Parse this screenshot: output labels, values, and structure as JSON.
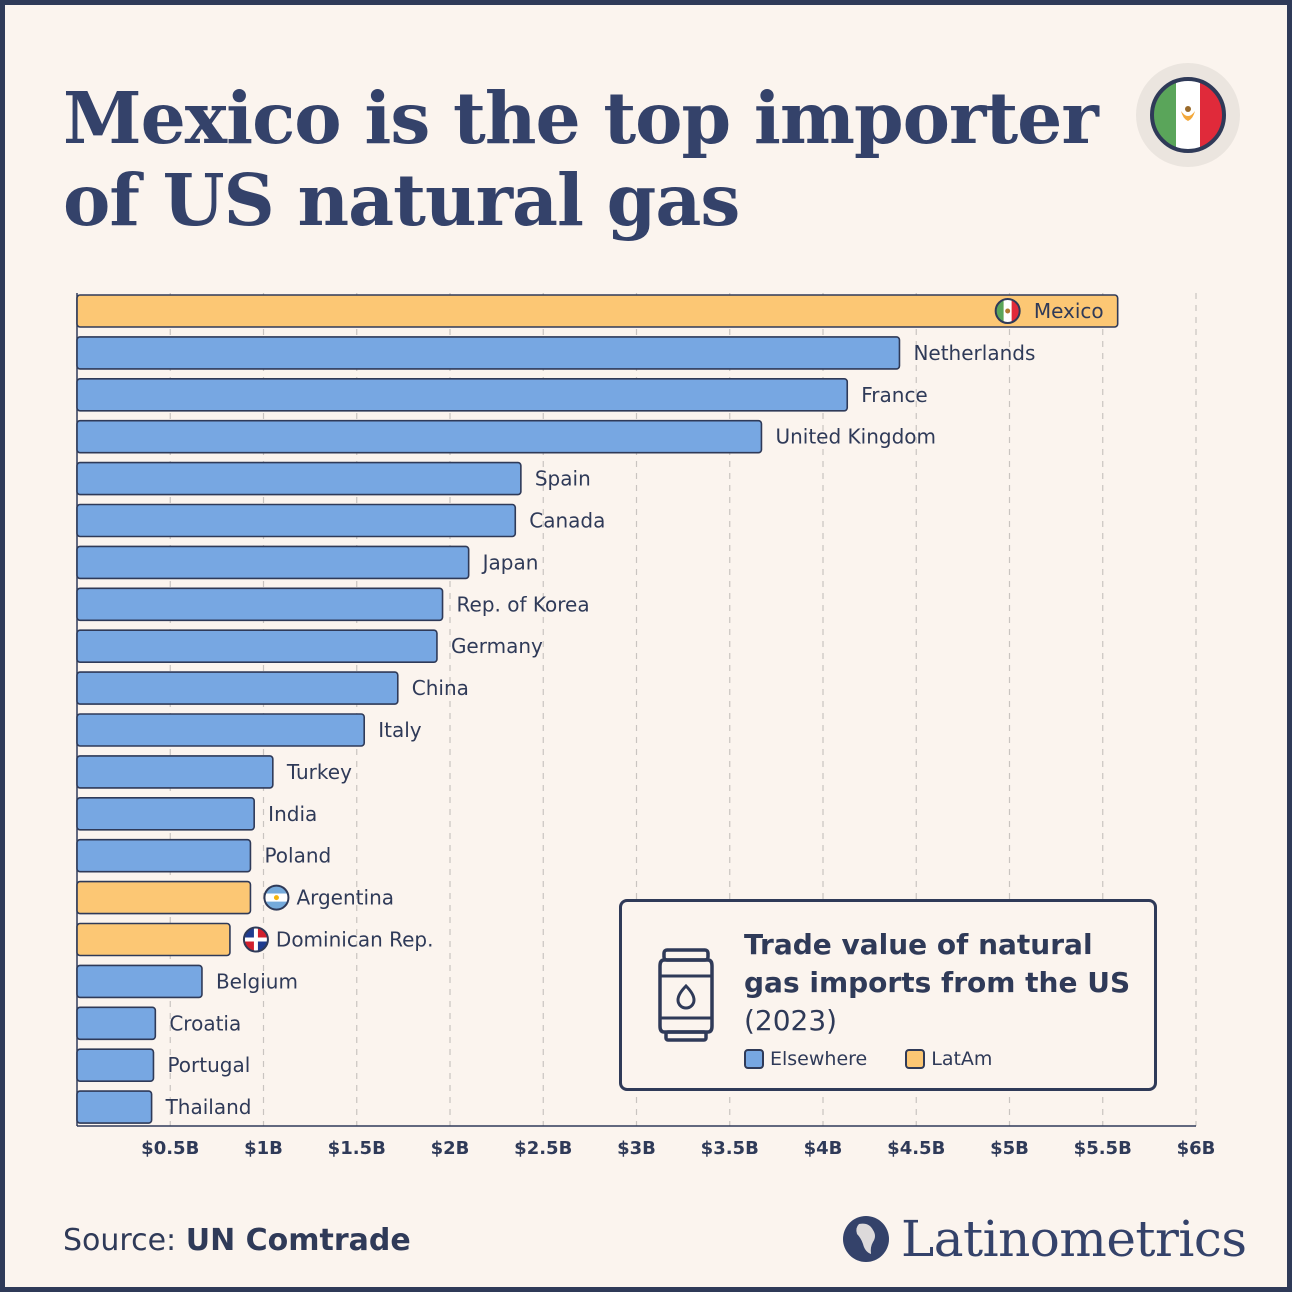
{
  "title": "Mexico is the top importer of US natural gas",
  "source": {
    "prefix": "Source:",
    "name": "UN Comtrade"
  },
  "brand": "Latinometrics",
  "legend": {
    "title_bold": "Trade value of natural gas imports from the US",
    "title_year": "(2023)",
    "items": [
      {
        "label": "Elsewhere",
        "color": "#77a7e2"
      },
      {
        "label": "LatAm",
        "color": "#fcc774"
      }
    ]
  },
  "colors": {
    "elsewhere": "#77a7e2",
    "latam": "#fcc774",
    "outline": "#2f3a58",
    "background": "#fbf4ee"
  },
  "chart_data": {
    "type": "bar",
    "orientation": "horizontal",
    "xlim": [
      0,
      6
    ],
    "ticks": [
      {
        "value": 0.5,
        "label": "$0.5B"
      },
      {
        "value": 1,
        "label": "$1B"
      },
      {
        "value": 1.5,
        "label": "$1.5B"
      },
      {
        "value": 2,
        "label": "$2B"
      },
      {
        "value": 2.5,
        "label": "$2.5B"
      },
      {
        "value": 3,
        "label": "$3B"
      },
      {
        "value": 3.5,
        "label": "$3.5B"
      },
      {
        "value": 4,
        "label": "$4B"
      },
      {
        "value": 4.5,
        "label": "$4.5B"
      },
      {
        "value": 5,
        "label": "$5B"
      },
      {
        "value": 5.5,
        "label": "$5.5B"
      },
      {
        "value": 6,
        "label": "$6B"
      }
    ],
    "grid": true,
    "legend_position": "bottom-right",
    "bars": [
      {
        "label": "Mexico",
        "value": 5.58,
        "group": "LatAm",
        "flag": "mexico"
      },
      {
        "label": "Netherlands",
        "value": 4.41,
        "group": "Elsewhere"
      },
      {
        "label": "France",
        "value": 4.13,
        "group": "Elsewhere"
      },
      {
        "label": "United Kingdom",
        "value": 3.67,
        "group": "Elsewhere"
      },
      {
        "label": "Spain",
        "value": 2.38,
        "group": "Elsewhere"
      },
      {
        "label": "Canada",
        "value": 2.35,
        "group": "Elsewhere"
      },
      {
        "label": "Japan",
        "value": 2.1,
        "group": "Elsewhere"
      },
      {
        "label": "Rep. of Korea",
        "value": 1.96,
        "group": "Elsewhere"
      },
      {
        "label": "Germany",
        "value": 1.93,
        "group": "Elsewhere"
      },
      {
        "label": "China",
        "value": 1.72,
        "group": "Elsewhere"
      },
      {
        "label": "Italy",
        "value": 1.54,
        "group": "Elsewhere"
      },
      {
        "label": "Turkey",
        "value": 1.05,
        "group": "Elsewhere"
      },
      {
        "label": "India",
        "value": 0.95,
        "group": "Elsewhere"
      },
      {
        "label": "Poland",
        "value": 0.93,
        "group": "Elsewhere"
      },
      {
        "label": "Argentina",
        "value": 0.93,
        "group": "LatAm",
        "flag": "argentina"
      },
      {
        "label": "Dominican Rep.",
        "value": 0.82,
        "group": "LatAm",
        "flag": "dominican"
      },
      {
        "label": "Belgium",
        "value": 0.67,
        "group": "Elsewhere"
      },
      {
        "label": "Croatia",
        "value": 0.42,
        "group": "Elsewhere"
      },
      {
        "label": "Portugal",
        "value": 0.41,
        "group": "Elsewhere"
      },
      {
        "label": "Thailand",
        "value": 0.4,
        "group": "Elsewhere"
      }
    ]
  }
}
